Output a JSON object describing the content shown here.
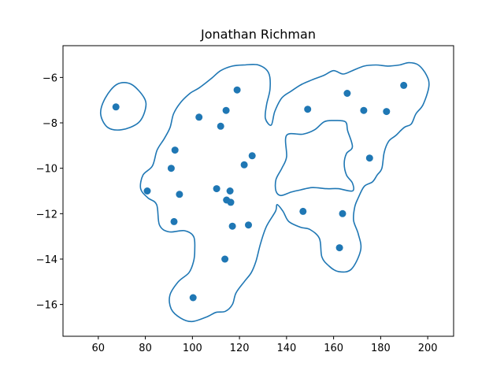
{
  "chart_data": {
    "type": "scatter",
    "title": "Jonathan Richman",
    "xlabel": "",
    "ylabel": "",
    "xlim": [
      45,
      211
    ],
    "ylim": [
      -17.4,
      -4.6
    ],
    "xticks": [
      60,
      80,
      100,
      120,
      140,
      160,
      180,
      200
    ],
    "yticks": [
      -16,
      -14,
      -12,
      -10,
      -8,
      -6
    ],
    "xtick_labels": [
      "60",
      "80",
      "100",
      "120",
      "140",
      "160",
      "180",
      "200"
    ],
    "ytick_labels": [
      "−16",
      "−14",
      "−12",
      "−10",
      "−8",
      "−6"
    ],
    "grid": false,
    "point_color": "#1f77b4",
    "contour_color": "#1f77b4",
    "points": [
      {
        "x": 67.5,
        "y": -7.3
      },
      {
        "x": 80.8,
        "y": -11.0
      },
      {
        "x": 92.6,
        "y": -9.2
      },
      {
        "x": 91.0,
        "y": -10.0
      },
      {
        "x": 94.5,
        "y": -11.15
      },
      {
        "x": 92.2,
        "y": -12.35
      },
      {
        "x": 102.8,
        "y": -7.75
      },
      {
        "x": 112.0,
        "y": -8.15
      },
      {
        "x": 114.3,
        "y": -7.45
      },
      {
        "x": 119.0,
        "y": -6.55
      },
      {
        "x": 110.3,
        "y": -10.9
      },
      {
        "x": 116.0,
        "y": -11.0
      },
      {
        "x": 114.5,
        "y": -11.4
      },
      {
        "x": 116.3,
        "y": -11.5
      },
      {
        "x": 122.0,
        "y": -9.85
      },
      {
        "x": 125.4,
        "y": -9.45
      },
      {
        "x": 117.0,
        "y": -12.55
      },
      {
        "x": 123.8,
        "y": -12.5
      },
      {
        "x": 113.8,
        "y": -14.0
      },
      {
        "x": 100.3,
        "y": -15.7
      },
      {
        "x": 147.0,
        "y": -11.9
      },
      {
        "x": 163.8,
        "y": -12.0
      },
      {
        "x": 162.5,
        "y": -13.5
      },
      {
        "x": 149.0,
        "y": -7.4
      },
      {
        "x": 165.8,
        "y": -6.7
      },
      {
        "x": 172.8,
        "y": -7.45
      },
      {
        "x": 182.5,
        "y": -7.5
      },
      {
        "x": 189.8,
        "y": -6.35
      },
      {
        "x": 175.3,
        "y": -9.55
      }
    ],
    "contours": [
      [
        [
          61,
          -7.6
        ],
        [
          63,
          -6.9
        ],
        [
          68,
          -6.3
        ],
        [
          74,
          -6.3
        ],
        [
          79.5,
          -6.9
        ],
        [
          80,
          -7.4
        ],
        [
          77,
          -8
        ],
        [
          70,
          -8.3
        ],
        [
          64,
          -8.2
        ],
        [
          61,
          -7.6
        ]
      ],
      [
        [
          99.8,
          -16.75
        ],
        [
          95,
          -16.6
        ],
        [
          91,
          -16.2
        ],
        [
          90.4,
          -15.6
        ],
        [
          94,
          -15
        ],
        [
          98.5,
          -14.6
        ],
        [
          100.5,
          -14.1
        ],
        [
          101,
          -13.6
        ],
        [
          100.5,
          -13
        ],
        [
          96.5,
          -12.75
        ],
        [
          90,
          -12.8
        ],
        [
          86,
          -12.5
        ],
        [
          84.8,
          -11.6
        ],
        [
          81,
          -11.3
        ],
        [
          78,
          -10.9
        ],
        [
          79,
          -10.3
        ],
        [
          83,
          -9.9
        ],
        [
          85,
          -9.2
        ],
        [
          88,
          -8.7
        ],
        [
          90.5,
          -8.2
        ],
        [
          92,
          -7.6
        ],
        [
          95,
          -7.1
        ],
        [
          99,
          -6.7
        ],
        [
          103,
          -6.45
        ],
        [
          108,
          -6.05
        ],
        [
          112,
          -5.7
        ],
        [
          117,
          -5.5
        ],
        [
          122,
          -5.45
        ],
        [
          128,
          -5.45
        ],
        [
          132.4,
          -5.8
        ],
        [
          133,
          -6.5
        ],
        [
          131.5,
          -7.2
        ],
        [
          131,
          -7.8
        ],
        [
          133.5,
          -8.1
        ],
        [
          135,
          -7.5
        ],
        [
          138,
          -6.9
        ],
        [
          142,
          -6.6
        ],
        [
          146.5,
          -6.3
        ],
        [
          151,
          -6.1
        ],
        [
          156,
          -5.9
        ],
        [
          160,
          -5.7
        ],
        [
          164,
          -5.85
        ],
        [
          168,
          -5.7
        ],
        [
          173,
          -5.5
        ],
        [
          178,
          -5.45
        ],
        [
          183,
          -5.5
        ],
        [
          188,
          -5.45
        ],
        [
          192,
          -5.35
        ],
        [
          196,
          -5.45
        ],
        [
          199.5,
          -5.9
        ],
        [
          200.5,
          -6.4
        ],
        [
          198,
          -7.2
        ],
        [
          195,
          -7.6
        ],
        [
          193,
          -8.05
        ],
        [
          190,
          -8.2
        ],
        [
          186.5,
          -8.55
        ],
        [
          183.5,
          -8.8
        ],
        [
          181.5,
          -9.3
        ],
        [
          180.5,
          -10
        ],
        [
          178.5,
          -10.3
        ],
        [
          176.5,
          -10.6
        ],
        [
          173,
          -10.8
        ],
        [
          170.5,
          -11.3
        ],
        [
          169,
          -11.7
        ],
        [
          168.5,
          -12.3
        ],
        [
          170.5,
          -12.9
        ],
        [
          171.5,
          -13.6
        ],
        [
          167.5,
          -14.45
        ],
        [
          162,
          -14.55
        ],
        [
          158,
          -14.3
        ],
        [
          155,
          -13.9
        ],
        [
          154,
          -13.1
        ],
        [
          150,
          -12.7
        ],
        [
          146,
          -12.6
        ],
        [
          141,
          -12.35
        ],
        [
          138.5,
          -11.9
        ],
        [
          136,
          -11.6
        ],
        [
          135.3,
          -11.9
        ],
        [
          131.5,
          -12.55
        ],
        [
          129,
          -13.3
        ],
        [
          127,
          -14.1
        ],
        [
          125,
          -14.6
        ],
        [
          122,
          -15
        ],
        [
          118.5,
          -15.5
        ],
        [
          117,
          -16
        ],
        [
          114,
          -16.3
        ],
        [
          110,
          -16.35
        ],
        [
          106,
          -16.55
        ],
        [
          99.8,
          -16.75
        ]
      ],
      [
        [
          140,
          -8.55
        ],
        [
          147,
          -8.5
        ],
        [
          152,
          -8.3
        ],
        [
          156,
          -7.95
        ],
        [
          160,
          -7.9
        ],
        [
          165,
          -7.95
        ],
        [
          166,
          -8.35
        ],
        [
          168,
          -9.05
        ],
        [
          165.5,
          -9.35
        ],
        [
          164.5,
          -9.8
        ],
        [
          165.5,
          -10.3
        ],
        [
          168,
          -10.65
        ],
        [
          168,
          -11.0
        ],
        [
          162,
          -10.9
        ],
        [
          157,
          -10.9
        ],
        [
          151,
          -10.85
        ],
        [
          146,
          -10.95
        ],
        [
          142,
          -11.05
        ],
        [
          137.6,
          -11.2
        ],
        [
          135.5,
          -11.0
        ],
        [
          135.5,
          -10.5
        ],
        [
          138,
          -10.0
        ],
        [
          140,
          -9.5
        ],
        [
          140,
          -8.55
        ]
      ]
    ]
  }
}
